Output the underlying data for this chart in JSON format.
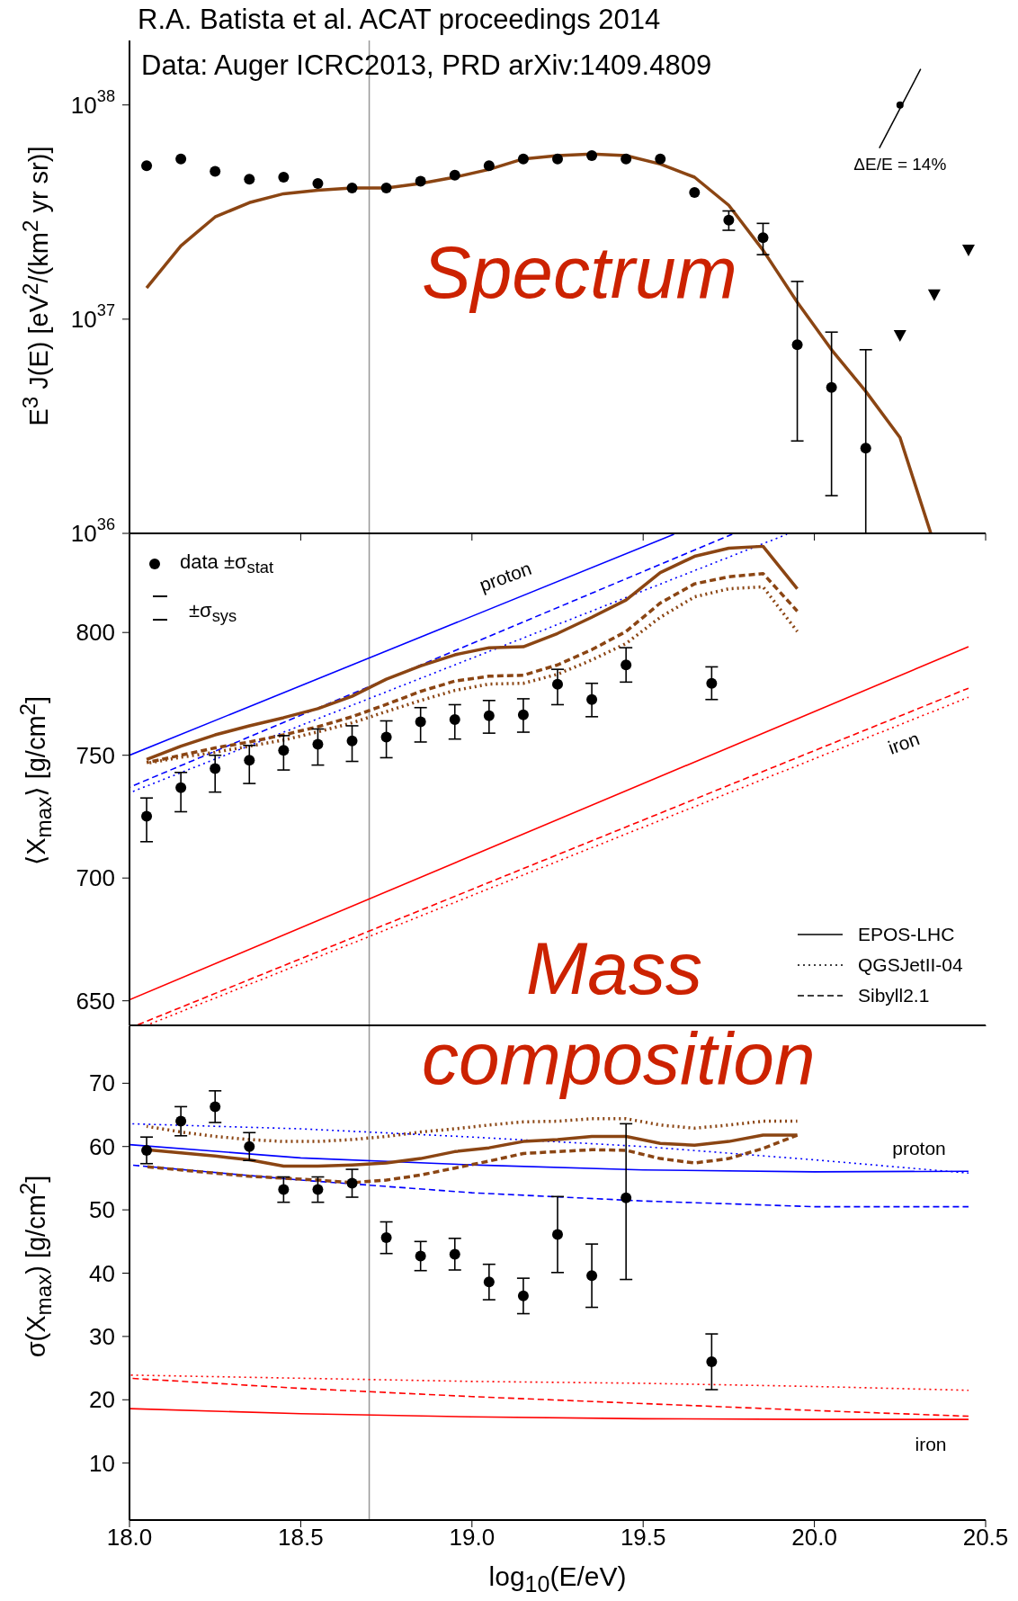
{
  "chart_data": [
    {
      "type": "line",
      "title": "R.A. Batista et al. ACAT proceedings 2014",
      "ylabel": "E$^{3}$ J(E) [eV$^{2}$/(km$^{2}$ yr sr)]",
      "log": "y",
      "xlim": [
        18,
        20.5
      ],
      "xticks": [
        18,
        18.5,
        19,
        19.5,
        20,
        20.5
      ],
      "ylim": [
        1e+36,
        2e+38
      ],
      "yticks": [
        {
          "value": 1e+36,
          "label": "10$^{36}$"
        },
        {
          "value": 1e+37,
          "label": "10$^{37}$"
        },
        {
          "value": 1e+38,
          "label": "10$^{38}$"
        }
      ],
      "tick_labels": "y",
      "annotations": [
        "Data: Auger ICRC2013, PRD arXiv:1409.4809",
        "Spectrum",
        {
          "text": "ΔE/E = 14%",
          "x": 20.25,
          "y": 1e+38
        }
      ],
      "ref_lines": [
        {
          "axis": "x",
          "value": 18.7,
          "color": "#999999"
        }
      ],
      "series": [
        {
          "type": "scatter",
          "marker": "circle",
          "color": "#000000",
          "x": [
            18.05,
            18.15,
            18.25,
            18.35,
            18.45,
            18.55,
            18.65,
            18.75,
            18.85,
            18.95,
            19.05,
            19.15,
            19.25,
            19.35,
            19.45,
            19.55,
            19.65,
            19.75,
            19.85,
            19.95,
            20.05,
            20.15
          ],
          "values": [
            5.2e+37,
            5.6e+37,
            4.9e+37,
            4.5e+37,
            4.6e+37,
            4.3e+37,
            4.1e+37,
            4.1e+37,
            4.4e+37,
            4.7e+37,
            5.2e+37,
            5.6e+37,
            5.6e+37,
            5.8e+37,
            5.6e+37,
            5.6e+37,
            3.9e+37,
            2.9e+37,
            2.4e+37,
            7.6e+36,
            4.8e+36,
            2.5e+36
          ],
          "errors": [
            null,
            null,
            null,
            null,
            null,
            null,
            null,
            null,
            null,
            null,
            null,
            null,
            null,
            null,
            null,
            null,
            null,
            [
              2.6e+37,
              3.2e+37
            ],
            [
              2e+37,
              2.8e+37
            ],
            [
              2.7e+36,
              1.5e+37
            ],
            [
              1.5e+36,
              8.7e+36
            ],
            [
              1e+36,
              7.2e+36
            ]
          ]
        },
        {
          "type": "scatter",
          "marker": "triangle",
          "color": "#000000",
          "x": [
            20.25,
            20.35,
            20.45
          ],
          "values": [
            8.4e+36,
            1.3e+37,
            2.1e+37
          ]
        },
        {
          "type": "line",
          "line_style": "solid",
          "color": "#8b4513",
          "x": [
            18.05,
            18.15,
            18.25,
            18.35,
            18.45,
            18.55,
            18.65,
            18.75,
            18.85,
            18.95,
            19.05,
            19.15,
            19.25,
            19.35,
            19.45,
            19.55,
            19.65,
            19.75,
            19.85,
            19.95,
            20.05,
            20.15,
            20.25,
            20.34
          ],
          "values": [
            1.4e+37,
            2.2e+37,
            3e+37,
            3.5e+37,
            3.85e+37,
            4e+37,
            4.1e+37,
            4.1e+37,
            4.3e+37,
            4.6e+37,
            5e+37,
            5.6e+37,
            5.8e+37,
            5.9e+37,
            5.8e+37,
            5.3e+37,
            4.6e+37,
            3.4e+37,
            2.1e+37,
            1.2e+37,
            7.2e+36,
            4.6e+36,
            2.8e+36,
            1e+36
          ]
        }
      ]
    },
    {
      "type": "line",
      "ylabel": "⟨X$_{max}$⟩ [g/cm$^{2}$]",
      "xlim": [
        18,
        20.5
      ],
      "xticks": [
        18,
        18.5,
        19,
        19.5,
        20,
        20.5
      ],
      "ylim": [
        640,
        840
      ],
      "yticks": [
        650,
        700,
        750,
        800
      ],
      "tick_labels": "y",
      "legend": "top left",
      "annotations": [
        "±σ$_{sys}$",
        "Mass",
        "EPOS-LHC",
        "QGSJetII-04",
        "Sibyll2.1",
        "proton",
        "iron"
      ],
      "ref_lines": [
        {
          "axis": "x",
          "value": 18.7,
          "color": "#999999"
        }
      ],
      "series": [
        {
          "type": "scatter",
          "name": "data ±σ$_{stat}$",
          "marker": "circle",
          "color": "#000000",
          "x": [
            18.05,
            18.15,
            18.25,
            18.35,
            18.45,
            18.55,
            18.65,
            18.75,
            18.85,
            18.95,
            19.05,
            19.15,
            19.25,
            19.35,
            19.45,
            19.7
          ],
          "values": [
            725.2,
            736.8,
            744.6,
            748,
            752,
            754.5,
            755.8,
            757.4,
            763.6,
            764.5,
            766.1,
            766.5,
            778.9,
            772.7,
            786.8,
            779.3
          ],
          "errors": [
            [
              714.8,
              732.6
            ],
            [
              727,
              743
            ],
            [
              735,
              750
            ],
            [
              738.5,
              754
            ],
            [
              744,
              758
            ],
            [
              746,
              760.7
            ],
            [
              747.5,
              762
            ],
            [
              749,
              764
            ],
            [
              755.4,
              769.4
            ],
            [
              756.6,
              770.6
            ],
            [
              759,
              772.3
            ],
            [
              759.4,
              773
            ],
            [
              770.6,
              785
            ],
            [
              765.7,
              779.3
            ],
            [
              779.8,
              793.8
            ],
            [
              772.7,
              786
            ]
          ]
        },
        {
          "type": "line",
          "line_style": "solid",
          "color": "#0000ff",
          "x": [
            18.0,
            19.59
          ],
          "values": [
            750,
            840
          ]
        },
        {
          "type": "line",
          "line_style": "dashed",
          "color": "#0000ff",
          "x": [
            18.0,
            19.76
          ],
          "values": [
            737,
            840
          ]
        },
        {
          "type": "line",
          "line_style": "dotted",
          "color": "#0000ff",
          "x": [
            18.0,
            19.92
          ],
          "values": [
            734.7,
            840
          ]
        },
        {
          "type": "line",
          "line_style": "solid",
          "color": "#ff0000",
          "x": [
            18.0,
            20.45
          ],
          "values": [
            650.4,
            794.2
          ]
        },
        {
          "type": "line",
          "line_style": "dashed",
          "color": "#ff0000",
          "x": [
            18.02,
            20.45
          ],
          "values": [
            640,
            777.3
          ]
        },
        {
          "type": "line",
          "line_style": "dotted",
          "color": "#ff0000",
          "x": [
            18.05,
            20.45
          ],
          "values": [
            640,
            773.6
          ]
        },
        {
          "type": "line",
          "line_style": "solid",
          "color": "#8b4513",
          "x": [
            18.05,
            18.15,
            18.25,
            18.35,
            18.45,
            18.55,
            18.65,
            18.75,
            18.85,
            18.95,
            19.05,
            19.15,
            19.25,
            19.35,
            19.45,
            19.55,
            19.65,
            19.75,
            19.85,
            19.95
          ],
          "values": [
            748.3,
            753.7,
            758.3,
            762,
            765.3,
            769,
            774,
            781,
            786.4,
            790.9,
            793.8,
            794.2,
            799.6,
            806.2,
            813.2,
            824.4,
            831,
            834.3,
            835.1,
            817.8
          ]
        },
        {
          "type": "line",
          "line_style": "dashed",
          "color": "#8b4513",
          "x": [
            18.05,
            18.15,
            18.25,
            18.35,
            18.45,
            18.55,
            18.65,
            18.75,
            18.85,
            18.95,
            19.05,
            19.15,
            19.25,
            19.35,
            19.45,
            19.55,
            19.65,
            19.75,
            19.85,
            19.95
          ],
          "values": [
            747,
            750,
            753,
            755.4,
            758.3,
            761.6,
            765.7,
            770.7,
            776,
            780.2,
            782.2,
            782.6,
            786.8,
            793,
            800.4,
            812,
            819.8,
            822.7,
            824,
            808.7
          ]
        },
        {
          "type": "line",
          "line_style": "dotted",
          "color": "#8b4513",
          "x": [
            18.05,
            18.15,
            18.25,
            18.35,
            18.45,
            18.55,
            18.65,
            18.75,
            18.85,
            18.95,
            19.05,
            19.15,
            19.25,
            19.35,
            19.45,
            19.55,
            19.65,
            19.75,
            19.85,
            19.95
          ],
          "values": [
            746.7,
            749.2,
            751.2,
            753.7,
            756.2,
            759.5,
            763.2,
            767.8,
            772.3,
            776.4,
            779,
            779.3,
            783,
            788.8,
            795.5,
            806.2,
            814.5,
            817.8,
            818.6,
            800.4
          ]
        }
      ]
    },
    {
      "type": "line",
      "ylabel": "σ(X$_{max}$) [g/cm$^{2}$]",
      "xlabel": "log$_{10}$(E/eV)",
      "xlim": [
        18,
        20.5
      ],
      "xticks": [
        {
          "value": 18,
          "label": "18.0"
        },
        {
          "value": 18.5,
          "label": "18.5"
        },
        {
          "value": 19,
          "label": "19.0"
        },
        {
          "value": 19.5,
          "label": "19.5"
        },
        {
          "value": 20,
          "label": "20.0"
        },
        {
          "value": 20.5,
          "label": "20.5"
        }
      ],
      "ylim": [
        1,
        79
      ],
      "yticks": [
        10,
        20,
        30,
        40,
        50,
        60,
        70
      ],
      "annotations": [
        "composition",
        "proton",
        "iron"
      ],
      "ref_lines": [
        {
          "axis": "x",
          "value": 18.7,
          "color": "#999999"
        }
      ],
      "series": [
        {
          "type": "scatter",
          "marker": "circle",
          "color": "#000000",
          "x": [
            18.05,
            18.15,
            18.25,
            18.35,
            18.45,
            18.55,
            18.65,
            18.75,
            18.85,
            18.95,
            19.05,
            19.15,
            19.25,
            19.35,
            19.45,
            19.7
          ],
          "values": [
            59.4,
            64,
            66.3,
            60,
            53.2,
            53.2,
            54.2,
            45.6,
            42.7,
            43,
            38.6,
            36.4,
            46.1,
            39.6,
            51.9,
            26
          ],
          "errors": [
            2.1,
            2.3,
            2.5,
            2.2,
            2,
            2,
            2.2,
            2.5,
            2.3,
            2.5,
            2.8,
            2.8,
            6,
            5,
            [
              39,
              63.6
            ],
            4.4
          ]
        },
        {
          "type": "line",
          "line_style": "solid",
          "color": "#0000ff",
          "x": [
            18.0,
            18.5,
            19.0,
            19.5,
            20.0,
            20.45
          ],
          "values": [
            60.3,
            58.2,
            57.1,
            56.3,
            56,
            56.1
          ]
        },
        {
          "type": "line",
          "line_style": "dashed",
          "color": "#0000ff",
          "x": [
            18.0,
            18.5,
            19.0,
            19.5,
            20.0,
            20.45
          ],
          "values": [
            57.1,
            54.7,
            52.7,
            51.4,
            50.5,
            50.5
          ]
        },
        {
          "type": "line",
          "line_style": "dotted",
          "color": "#0000ff",
          "x": [
            18.0,
            18.5,
            19.0,
            19.5,
            20.0,
            20.45
          ],
          "values": [
            63.6,
            62.8,
            61.5,
            60,
            57.9,
            55.8
          ]
        },
        {
          "type": "line",
          "line_style": "solid",
          "color": "#ff0000",
          "x": [
            18.0,
            18.5,
            19.0,
            19.5,
            20.0,
            20.45
          ],
          "values": [
            18.6,
            17.8,
            17.3,
            17,
            16.9,
            16.9
          ]
        },
        {
          "type": "line",
          "line_style": "dashed",
          "color": "#ff0000",
          "x": [
            18.0,
            18.5,
            19.0,
            19.5,
            20.0,
            20.45
          ],
          "values": [
            23.4,
            21.8,
            20.5,
            19.4,
            18.3,
            17.4
          ]
        },
        {
          "type": "line",
          "line_style": "dotted",
          "color": "#ff0000",
          "x": [
            18.0,
            18.5,
            19.0,
            19.5,
            20.0,
            20.45
          ],
          "values": [
            23.9,
            23.4,
            22.9,
            22.6,
            22.1,
            21.5
          ]
        },
        {
          "type": "line",
          "line_style": "solid",
          "color": "#8b4513",
          "x": [
            18.05,
            18.15,
            18.25,
            18.35,
            18.45,
            18.55,
            18.65,
            18.75,
            18.85,
            18.95,
            19.05,
            19.15,
            19.25,
            19.35,
            19.45,
            19.55,
            19.65,
            19.75,
            19.85,
            19.95
          ],
          "values": [
            59.5,
            59,
            58.5,
            57.9,
            56.9,
            56.9,
            57.1,
            57.4,
            58.1,
            59.2,
            59.8,
            60.8,
            61.1,
            61.6,
            61.6,
            60.5,
            60.2,
            60.8,
            61.8,
            61.8
          ]
        },
        {
          "type": "line",
          "line_style": "dashed",
          "color": "#8b4513",
          "x": [
            18.05,
            18.15,
            18.25,
            18.35,
            18.45,
            18.55,
            18.65,
            18.75,
            18.85,
            18.95,
            19.05,
            19.15,
            19.25,
            19.35,
            19.45,
            19.55,
            19.65,
            19.75,
            19.85,
            19.95
          ],
          "values": [
            56.8,
            56.3,
            55.8,
            55.3,
            55,
            54.7,
            54.3,
            54.7,
            55.5,
            56.6,
            57.7,
            58.9,
            59.2,
            59.5,
            59.4,
            58.1,
            57.4,
            58.1,
            59.7,
            61.8
          ]
        },
        {
          "type": "line",
          "line_style": "dotted",
          "color": "#8b4513",
          "x": [
            18.05,
            18.15,
            18.25,
            18.35,
            18.45,
            18.55,
            18.65,
            18.75,
            18.85,
            18.95,
            19.05,
            19.15,
            19.25,
            19.35,
            19.45,
            19.55,
            19.65,
            19.75,
            19.85,
            19.95
          ],
          "values": [
            63.2,
            62.3,
            61.6,
            61.1,
            60.8,
            60.8,
            61.1,
            61.6,
            62.3,
            62.8,
            63.4,
            63.9,
            64,
            64.4,
            64.4,
            63.4,
            62.9,
            63.4,
            64,
            64
          ]
        }
      ]
    }
  ]
}
